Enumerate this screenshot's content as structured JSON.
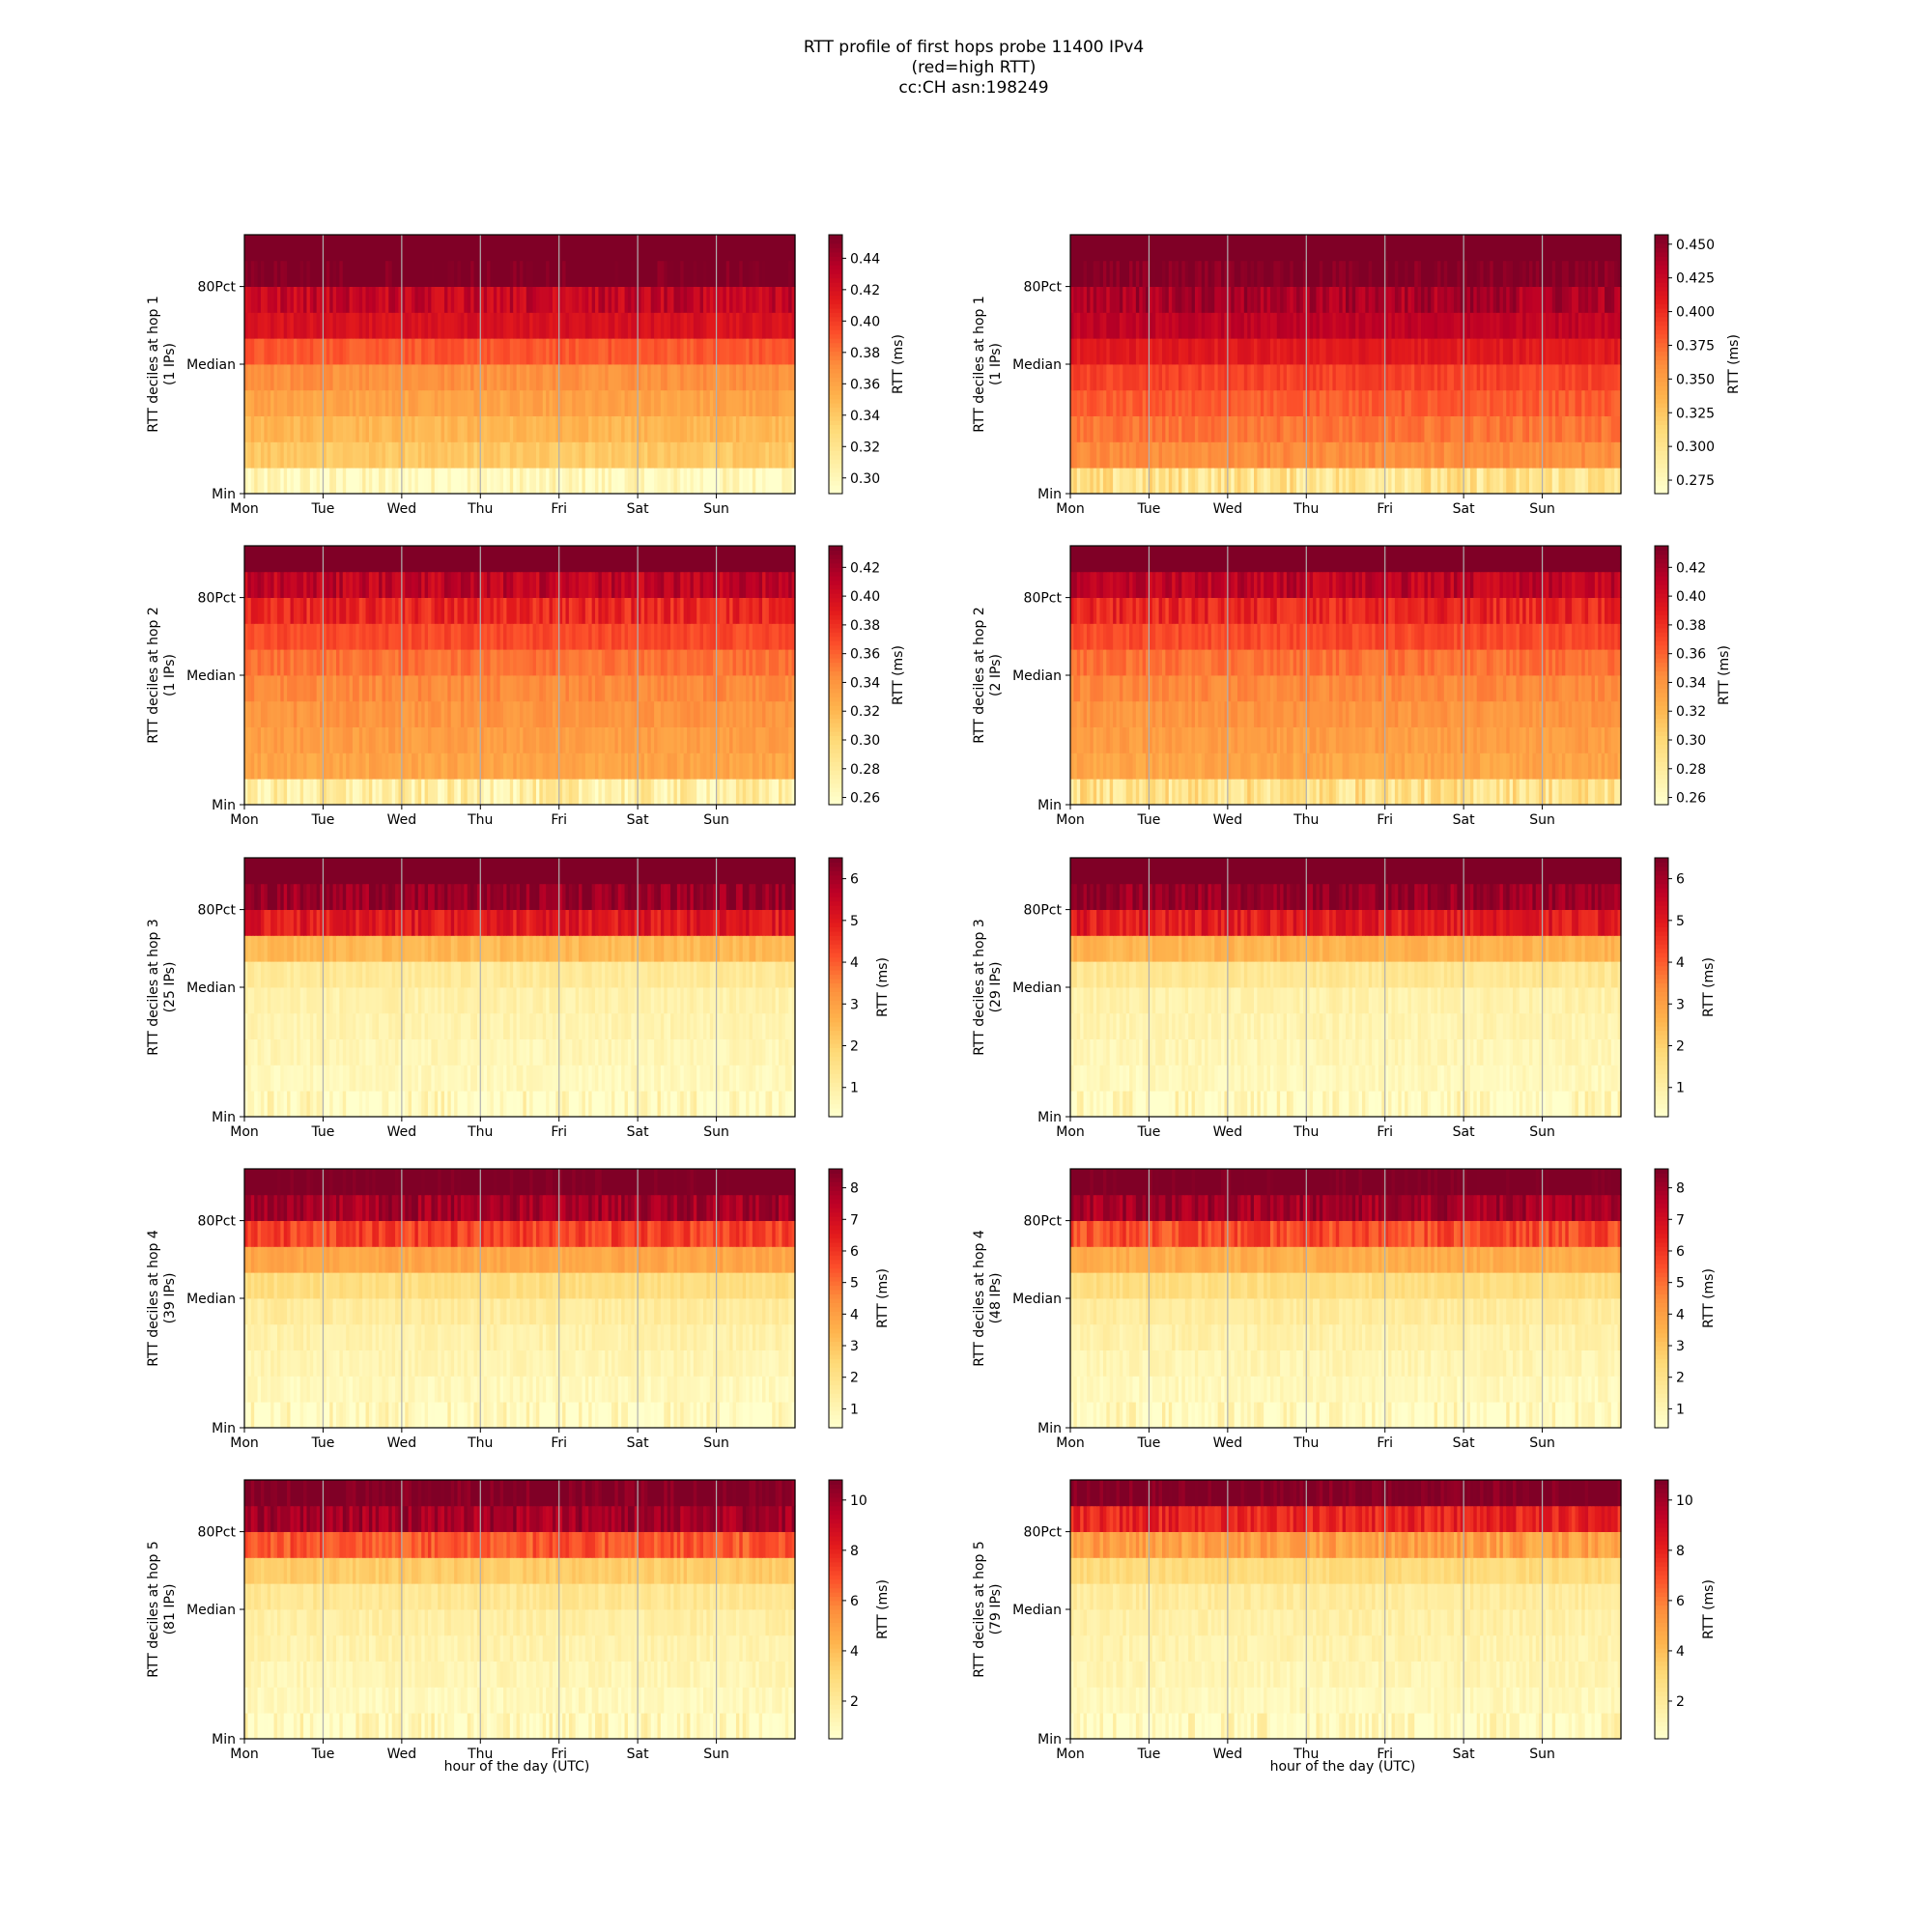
{
  "figure": {
    "title_lines": [
      "RTT profile of first hops probe 11400 IPv4",
      "(red=high RTT)",
      "cc:CH asn:198249"
    ],
    "xlabel": "hour of the day (UTC)"
  },
  "colors": {
    "colormap_YlOrRd": [
      "#ffffcc",
      "#ffeda0",
      "#fed976",
      "#feb24c",
      "#fd8d3c",
      "#fc4e2a",
      "#e31a1c",
      "#bd0026",
      "#800026"
    ],
    "gridline": "#b0b0b0"
  },
  "chart_data": [
    {
      "type": "heatmap",
      "hop": 1,
      "ylabel": "RTT deciles at hop 1",
      "ips": "(1 IPs)",
      "xticks": [
        "Mon",
        "Tue",
        "Wed",
        "Thu",
        "Fri",
        "Sat",
        "Sun"
      ],
      "yticks": [
        "Min",
        "Median",
        "80Pct"
      ],
      "cbar_label": "RTT (ms)",
      "cbar_ticks": [
        "0.30",
        "0.32",
        "0.34",
        "0.36",
        "0.38",
        "0.40",
        "0.42",
        "0.44"
      ],
      "cbar_range": [
        0.29,
        0.455
      ],
      "deciles": [
        0.295,
        0.34,
        0.35,
        0.36,
        0.37,
        0.39,
        0.42,
        0.43,
        0.46,
        0.49
      ]
    },
    {
      "type": "heatmap",
      "hop": 1,
      "ylabel": "RTT deciles at hop 1",
      "ips": "(1 IPs)",
      "xticks": [
        "Mon",
        "Tue",
        "Wed",
        "Thu",
        "Fri",
        "Sat",
        "Sun"
      ],
      "yticks": [
        "Min",
        "Median",
        "80Pct"
      ],
      "cbar_label": "RTT (ms)",
      "cbar_ticks": [
        "0.275",
        "0.300",
        "0.325",
        "0.350",
        "0.375",
        "0.400",
        "0.425",
        "0.450"
      ],
      "cbar_range": [
        0.265,
        0.457
      ],
      "deciles": [
        0.3,
        0.36,
        0.37,
        0.38,
        0.39,
        0.41,
        0.43,
        0.44,
        0.46,
        0.5
      ]
    },
    {
      "type": "heatmap",
      "hop": 2,
      "ylabel": "RTT deciles at hop 2",
      "ips": "(1 IPs)",
      "xticks": [
        "Mon",
        "Tue",
        "Wed",
        "Thu",
        "Fri",
        "Sat",
        "Sun"
      ],
      "yticks": [
        "Min",
        "Median",
        "80Pct"
      ],
      "cbar_label": "RTT (ms)",
      "cbar_ticks": [
        "0.26",
        "0.28",
        "0.30",
        "0.32",
        "0.34",
        "0.36",
        "0.38",
        "0.40",
        "0.42"
      ],
      "cbar_range": [
        0.255,
        0.435
      ],
      "deciles": [
        0.275,
        0.33,
        0.335,
        0.34,
        0.345,
        0.355,
        0.37,
        0.385,
        0.41,
        0.45
      ]
    },
    {
      "type": "heatmap",
      "hop": 2,
      "ylabel": "RTT deciles at hop 2",
      "ips": "(2 IPs)",
      "xticks": [
        "Mon",
        "Tue",
        "Wed",
        "Thu",
        "Fri",
        "Sat",
        "Sun"
      ],
      "yticks": [
        "Min",
        "Median",
        "80Pct"
      ],
      "cbar_label": "RTT (ms)",
      "cbar_ticks": [
        "0.26",
        "0.28",
        "0.30",
        "0.32",
        "0.34",
        "0.36",
        "0.38",
        "0.40",
        "0.42"
      ],
      "cbar_range": [
        0.255,
        0.435
      ],
      "deciles": [
        0.29,
        0.33,
        0.335,
        0.34,
        0.345,
        0.355,
        0.37,
        0.385,
        0.41,
        0.45
      ]
    },
    {
      "type": "heatmap",
      "hop": 3,
      "ylabel": "RTT deciles at hop 3",
      "ips": "(25 IPs)",
      "xticks": [
        "Mon",
        "Tue",
        "Wed",
        "Thu",
        "Fri",
        "Sat",
        "Sun"
      ],
      "yticks": [
        "Min",
        "Median",
        "80Pct"
      ],
      "cbar_label": "RTT (ms)",
      "cbar_ticks": [
        "1",
        "2",
        "3",
        "4",
        "5",
        "6"
      ],
      "cbar_range": [
        0.3,
        6.5
      ],
      "deciles": [
        0.5,
        0.6,
        0.7,
        0.8,
        0.9,
        1.2,
        2.5,
        5.0,
        6.2,
        7.0
      ]
    },
    {
      "type": "heatmap",
      "hop": 3,
      "ylabel": "RTT deciles at hop 3",
      "ips": "(29 IPs)",
      "xticks": [
        "Mon",
        "Tue",
        "Wed",
        "Thu",
        "Fri",
        "Sat",
        "Sun"
      ],
      "yticks": [
        "Min",
        "Median",
        "80Pct"
      ],
      "cbar_label": "RTT (ms)",
      "cbar_ticks": [
        "1",
        "2",
        "3",
        "4",
        "5",
        "6"
      ],
      "cbar_range": [
        0.3,
        6.5
      ],
      "deciles": [
        0.5,
        0.6,
        0.7,
        0.8,
        0.9,
        1.3,
        2.6,
        5.0,
        6.2,
        7.0
      ]
    },
    {
      "type": "heatmap",
      "hop": 4,
      "ylabel": "RTT deciles at hop 4",
      "ips": "(39 IPs)",
      "xticks": [
        "Mon",
        "Tue",
        "Wed",
        "Thu",
        "Fri",
        "Sat",
        "Sun"
      ],
      "yticks": [
        "Min",
        "Median",
        "80Pct"
      ],
      "cbar_label": "RTT (ms)",
      "cbar_ticks": [
        "1",
        "2",
        "3",
        "4",
        "5",
        "6",
        "7",
        "8"
      ],
      "cbar_range": [
        0.4,
        8.6
      ],
      "deciles": [
        0.6,
        0.8,
        1.0,
        1.2,
        1.5,
        2.2,
        3.8,
        5.8,
        8.0,
        9.0
      ]
    },
    {
      "type": "heatmap",
      "hop": 4,
      "ylabel": "RTT deciles at hop 4",
      "ips": "(48 IPs)",
      "xticks": [
        "Mon",
        "Tue",
        "Wed",
        "Thu",
        "Fri",
        "Sat",
        "Sun"
      ],
      "yticks": [
        "Min",
        "Median",
        "80Pct"
      ],
      "cbar_label": "RTT (ms)",
      "cbar_ticks": [
        "1",
        "2",
        "3",
        "4",
        "5",
        "6",
        "7",
        "8"
      ],
      "cbar_range": [
        0.4,
        8.6
      ],
      "deciles": [
        0.6,
        0.8,
        1.0,
        1.2,
        1.5,
        2.2,
        3.6,
        5.6,
        8.0,
        9.0
      ]
    },
    {
      "type": "heatmap",
      "hop": 5,
      "ylabel": "RTT deciles at hop 5",
      "ips": "(81 IPs)",
      "xticks": [
        "Mon",
        "Tue",
        "Wed",
        "Thu",
        "Fri",
        "Sat",
        "Sun"
      ],
      "yticks": [
        "Min",
        "Median",
        "80Pct"
      ],
      "cbar_label": "RTT (ms)",
      "cbar_ticks": [
        "2",
        "4",
        "6",
        "8",
        "10"
      ],
      "cbar_range": [
        0.5,
        10.8
      ],
      "deciles": [
        0.8,
        1.0,
        1.2,
        1.4,
        1.7,
        2.2,
        3.5,
        6.8,
        10.0,
        11.0
      ]
    },
    {
      "type": "heatmap",
      "hop": 5,
      "ylabel": "RTT deciles at hop 5",
      "ips": "(79 IPs)",
      "xticks": [
        "Mon",
        "Tue",
        "Wed",
        "Thu",
        "Fri",
        "Sat",
        "Sun"
      ],
      "yticks": [
        "Min",
        "Median",
        "80Pct"
      ],
      "cbar_label": "RTT (ms)",
      "cbar_ticks": [
        "2",
        "4",
        "6",
        "8",
        "10"
      ],
      "cbar_range": [
        0.5,
        10.8
      ],
      "deciles": [
        0.8,
        1.0,
        1.2,
        1.4,
        1.6,
        1.9,
        2.9,
        5.0,
        8.0,
        11.0
      ]
    }
  ]
}
